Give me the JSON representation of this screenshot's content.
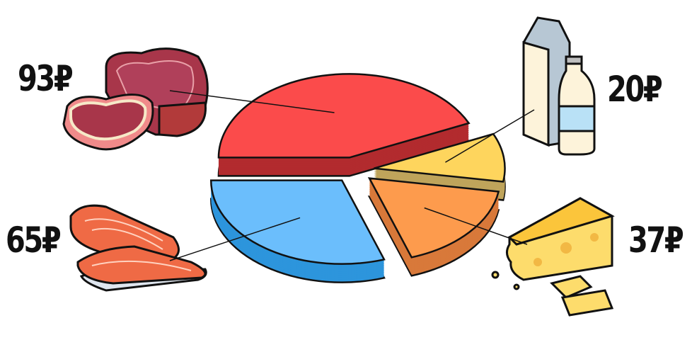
{
  "chart_data": {
    "type": "pie",
    "style": "3d-exploded",
    "currency_symbol": "₽",
    "slices": [
      {
        "label": "93₽",
        "value": 93,
        "item": "meat",
        "color": "#fb4b4b",
        "side_color": "#b22b2e"
      },
      {
        "label": "20₽",
        "value": 20,
        "item": "milk",
        "color": "#fed55d",
        "side_color": "#bfa45b"
      },
      {
        "label": "37₽",
        "value": 37,
        "item": "cheese",
        "color": "#fd9b4d",
        "side_color": "#d8793a"
      },
      {
        "label": "65₽",
        "value": 65,
        "item": "fish",
        "color": "#6bbefc",
        "side_color": "#2d95dc"
      }
    ]
  }
}
